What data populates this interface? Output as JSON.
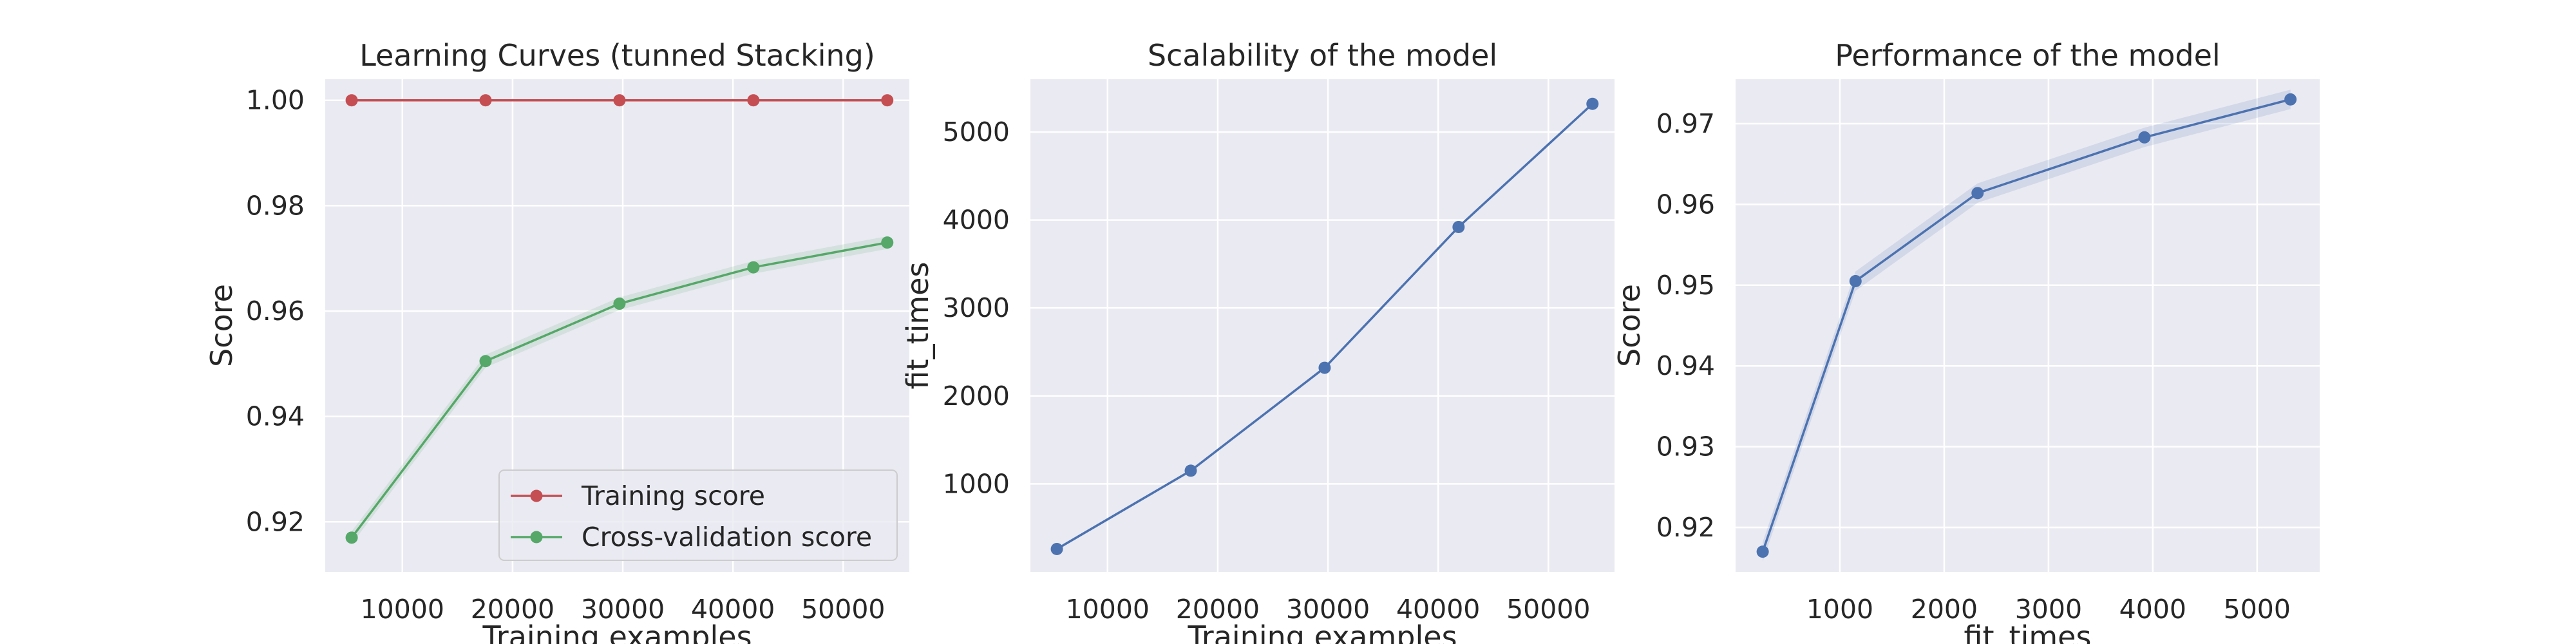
{
  "colors": {
    "plot_bg": "#EAEAF2",
    "grid": "#FFFFFF",
    "training": "#C44E52",
    "cv": "#55A868",
    "blue": "#4C72B0",
    "text": "#262626"
  },
  "chart_data": [
    {
      "type": "line",
      "title": "Learning Curves (tunned Stacking)",
      "xlabel": "Training examples",
      "ylabel": "Score",
      "xlim": [
        3000,
        56000
      ],
      "ylim": [
        0.9105,
        1.004
      ],
      "xticks": [
        10000,
        20000,
        30000,
        40000,
        50000
      ],
      "yticks": [
        0.92,
        0.94,
        0.96,
        0.98,
        1.0
      ],
      "ytick_decimals": 2,
      "grid": true,
      "legend": "lower-right",
      "x": [
        5400,
        17550,
        29700,
        41850,
        54000
      ],
      "series": [
        {
          "name": "Training score",
          "color_key": "training",
          "values": [
            1.0,
            1.0,
            1.0,
            1.0,
            1.0
          ],
          "band": [
            0.0,
            0.0,
            0.0,
            0.0,
            0.0
          ]
        },
        {
          "name": "Cross-validation score",
          "color_key": "cv",
          "values": [
            0.917,
            0.9505,
            0.9614,
            0.9683,
            0.973
          ],
          "band": [
            0.0012,
            0.0012,
            0.0012,
            0.0012,
            0.0012
          ]
        }
      ]
    },
    {
      "type": "line",
      "title": "Scalability of the model",
      "xlabel": "Training examples",
      "ylabel": "fit_times",
      "xlim": [
        3000,
        56000
      ],
      "ylim": [
        0,
        5600
      ],
      "xticks": [
        10000,
        20000,
        30000,
        40000,
        50000
      ],
      "yticks": [
        1000,
        2000,
        3000,
        4000,
        5000
      ],
      "ytick_decimals": 0,
      "grid": true,
      "x": [
        5400,
        17550,
        29700,
        41850,
        54000
      ],
      "series": [
        {
          "color_key": "blue",
          "values": [
            260,
            1150,
            2320,
            3920,
            5320
          ],
          "band": [
            0,
            0,
            0,
            0,
            0
          ]
        }
      ]
    },
    {
      "type": "line",
      "title": "Performance of the model",
      "xlabel": "fit_times",
      "ylabel": "Score",
      "xlim": [
        0,
        5600
      ],
      "ylim": [
        0.9145,
        0.9755
      ],
      "xticks": [
        1000,
        2000,
        3000,
        4000,
        5000
      ],
      "yticks": [
        0.92,
        0.93,
        0.94,
        0.95,
        0.96,
        0.97
      ],
      "ytick_decimals": 2,
      "grid": true,
      "x": [
        260,
        1150,
        2320,
        3920,
        5320
      ],
      "series": [
        {
          "color_key": "blue",
          "values": [
            0.917,
            0.9505,
            0.9614,
            0.9683,
            0.973
          ],
          "band": [
            0.0012,
            0.0012,
            0.0012,
            0.0012,
            0.0012
          ]
        }
      ]
    }
  ]
}
